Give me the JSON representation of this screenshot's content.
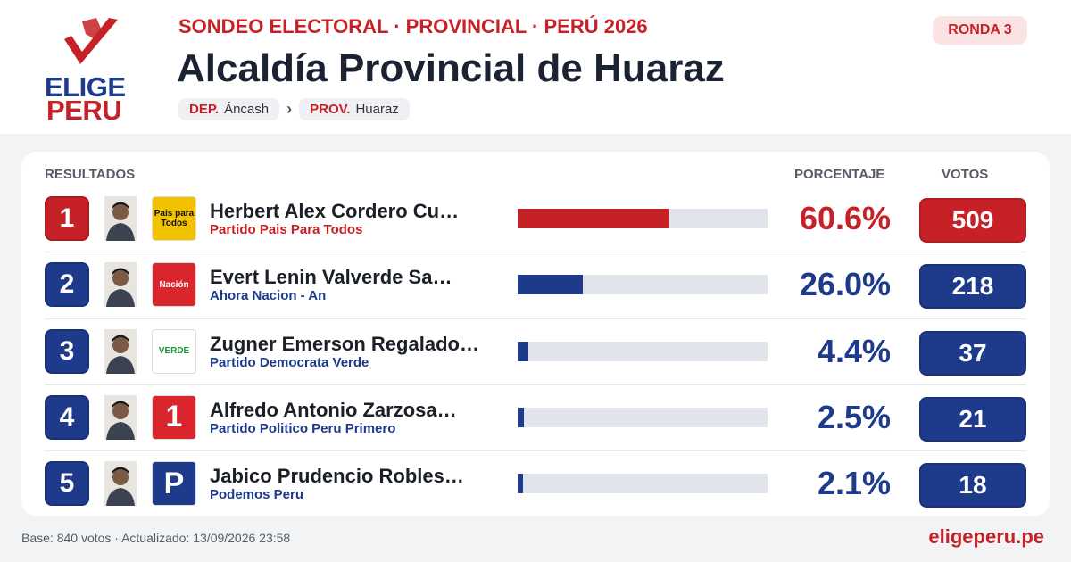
{
  "header": {
    "logo": [
      "ELIGE",
      "PERU"
    ],
    "kicker": "SONDEO ELECTORAL · PROVINCIAL · PERÚ 2026",
    "title": "Alcaldía Provincial de Huaraz",
    "round": "RONDA 3",
    "breadcrumb": [
      {
        "key": "DEP.",
        "value": "Áncash"
      },
      {
        "key": "PROV.",
        "value": "Huaraz"
      }
    ],
    "separator": "›"
  },
  "table": {
    "headers": [
      "RESULTADOS",
      "PORCENTAJE",
      "VOTOS"
    ],
    "colors": {
      "leader": "#c62127",
      "others": "#1e3a8a"
    },
    "rows": [
      {
        "rank": 1,
        "name": "Herbert Alex Cordero Cu…",
        "party": "Partido Pais Para Todos",
        "percent": 60.6,
        "percent_label": "60.6%",
        "votes": 509,
        "logo": {
          "text": "Pais para Todos",
          "bg": "#f2c200",
          "fg": "#111"
        }
      },
      {
        "rank": 2,
        "name": "Evert Lenin Valverde Sa…",
        "party": "Ahora Nacion - An",
        "percent": 26.0,
        "percent_label": "26.0%",
        "votes": 218,
        "logo": {
          "text": "Nación",
          "bg": "#d8262c",
          "fg": "#fff"
        }
      },
      {
        "rank": 3,
        "name": "Zugner Emerson Regalado…",
        "party": "Partido Democrata Verde",
        "percent": 4.4,
        "percent_label": "4.4%",
        "votes": 37,
        "logo": {
          "text": "VERDE",
          "bg": "#ffffff",
          "fg": "#1a9a3a"
        }
      },
      {
        "rank": 4,
        "name": "Alfredo Antonio Zarzosa…",
        "party": "Partido Politico Peru Primero",
        "percent": 2.5,
        "percent_label": "2.5%",
        "votes": 21,
        "logo": {
          "text": "1",
          "bg": "#d8262c",
          "fg": "#fff"
        }
      },
      {
        "rank": 5,
        "name": "Jabico Prudencio Robles…",
        "party": "Podemos Peru",
        "percent": 2.1,
        "percent_label": "2.1%",
        "votes": 18,
        "logo": {
          "text": "P",
          "bg": "#1e3a8a",
          "fg": "#fff"
        }
      }
    ]
  },
  "footer": {
    "note": "Base: 840 votos · Actualizado: 13/09/2026 23:58",
    "site": "eligeperu.pe"
  }
}
